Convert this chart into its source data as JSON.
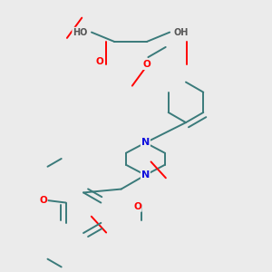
{
  "background_color": "#ebebeb",
  "bond_color": "#3a7a7a",
  "bond_width": 1.4,
  "atom_colors": {
    "O": "#ff0000",
    "N": "#1010dd",
    "C": "#3a7a7a",
    "H": "#555555"
  },
  "figsize": [
    3.0,
    3.0
  ],
  "dpi": 100
}
